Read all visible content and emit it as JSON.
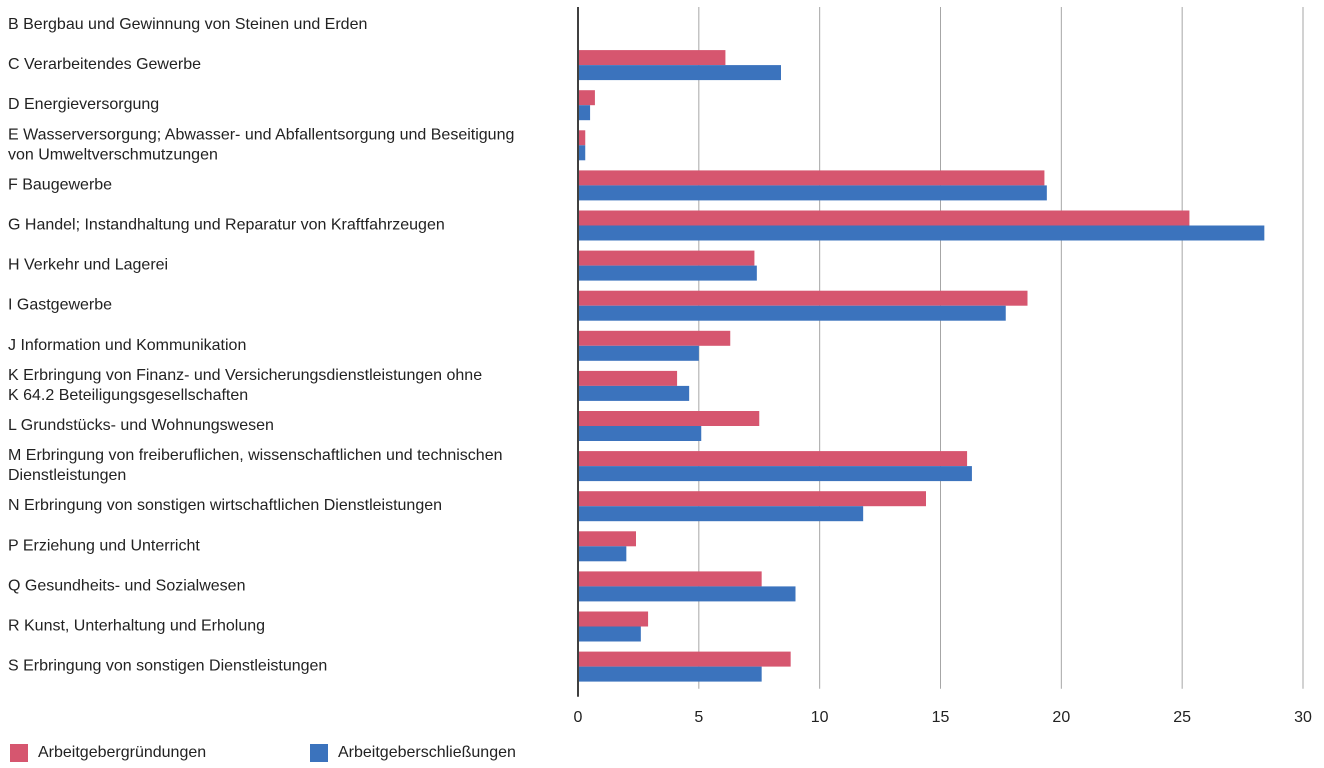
{
  "chart_data": {
    "type": "bar",
    "orientation": "horizontal",
    "categories": [
      [
        "B Bergbau und Gewinnung von Steinen und Erden"
      ],
      [
        "C Verarbeitendes Gewerbe"
      ],
      [
        "D Energieversorgung"
      ],
      [
        "E Wasserversorgung; Abwasser- und Abfallentsorgung und Beseitigung",
        "von Umweltverschmutzungen"
      ],
      [
        "F Baugewerbe"
      ],
      [
        "G Handel; Instandhaltung und Reparatur von Kraftfahrzeugen"
      ],
      [
        "H Verkehr und Lagerei"
      ],
      [
        "I Gastgewerbe"
      ],
      [
        "J Information und Kommunikation"
      ],
      [
        "K Erbringung von Finanz- und Versicherungsdienstleistungen ohne",
        "K 64.2 Beteiligungsgesellschaften"
      ],
      [
        "L Grundstücks- und Wohnungswesen"
      ],
      [
        "M Erbringung von freiberuflichen, wissenschaftlichen und technischen",
        "Dienstleistungen"
      ],
      [
        "N Erbringung von sonstigen wirtschaftlichen Dienstleistungen"
      ],
      [
        "P Erziehung und Unterricht"
      ],
      [
        "Q Gesundheits- und Sozialwesen"
      ],
      [
        "R Kunst, Unterhaltung und Erholung"
      ],
      [
        "S Erbringung von sonstigen Dienstleistungen"
      ]
    ],
    "series": [
      {
        "name": "Arbeitgebergründungen",
        "color": "#d6566f",
        "values": [
          0,
          6.1,
          0.7,
          0.3,
          19.3,
          25.3,
          7.3,
          18.6,
          6.3,
          4.1,
          7.5,
          16.1,
          14.4,
          2.4,
          7.6,
          2.9,
          8.8
        ]
      },
      {
        "name": "Arbeitgeberschließungen",
        "color": "#3b73bd",
        "values": [
          0,
          8.4,
          0.5,
          0.3,
          19.4,
          28.4,
          7.4,
          17.7,
          5.0,
          4.6,
          5.1,
          16.3,
          11.8,
          2.0,
          9.0,
          2.6,
          7.6
        ]
      }
    ],
    "x_ticks": [
      "0",
      "5",
      "10",
      "15",
      "20",
      "25",
      "30"
    ],
    "xlim": [
      0,
      30
    ],
    "grid": "vertical",
    "legend": "bottom-left"
  }
}
